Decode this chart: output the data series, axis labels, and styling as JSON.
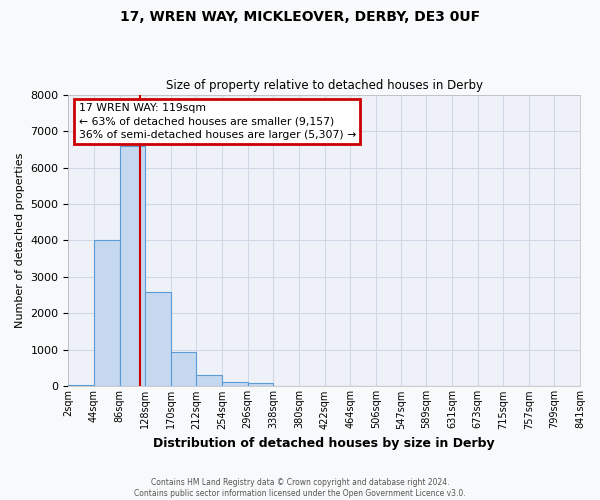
{
  "title": "17, WREN WAY, MICKLEOVER, DERBY, DE3 0UF",
  "subtitle": "Size of property relative to detached houses in Derby",
  "xlabel": "Distribution of detached houses by size in Derby",
  "ylabel": "Number of detached properties",
  "bin_labels": [
    "2sqm",
    "44sqm",
    "86sqm",
    "128sqm",
    "170sqm",
    "212sqm",
    "254sqm",
    "296sqm",
    "338sqm",
    "380sqm",
    "422sqm",
    "464sqm",
    "506sqm",
    "547sqm",
    "589sqm",
    "631sqm",
    "673sqm",
    "715sqm",
    "757sqm",
    "799sqm",
    "841sqm"
  ],
  "bar_values": [
    50,
    4000,
    6600,
    2600,
    950,
    320,
    130,
    90,
    0,
    0,
    0,
    0,
    0,
    0,
    0,
    0,
    0,
    0,
    0,
    0
  ],
  "bar_color": "#c5d8f0",
  "bar_edge_color": "#5b9bd5",
  "grid_color": "#d0d8e8",
  "background_color": "#eef2f8",
  "fig_background_color": "#f8f9fa",
  "vline_x": 119,
  "vline_color": "#cc0000",
  "annotation_title": "17 WREN WAY: 119sqm",
  "annotation_line1": "← 63% of detached houses are smaller (9,157)",
  "annotation_line2": "36% of semi-detached houses are larger (5,307) →",
  "annotation_box_color": "#cc0000",
  "ylim": [
    0,
    8000
  ],
  "yticks": [
    0,
    1000,
    2000,
    3000,
    4000,
    5000,
    6000,
    7000,
    8000
  ],
  "bin_edges": [
    2,
    44,
    86,
    128,
    170,
    212,
    254,
    296,
    338,
    380,
    422,
    464,
    506,
    547,
    589,
    631,
    673,
    715,
    757,
    799,
    841
  ],
  "footer_line1": "Contains HM Land Registry data © Crown copyright and database right 2024.",
  "footer_line2": "Contains public sector information licensed under the Open Government Licence v3.0."
}
